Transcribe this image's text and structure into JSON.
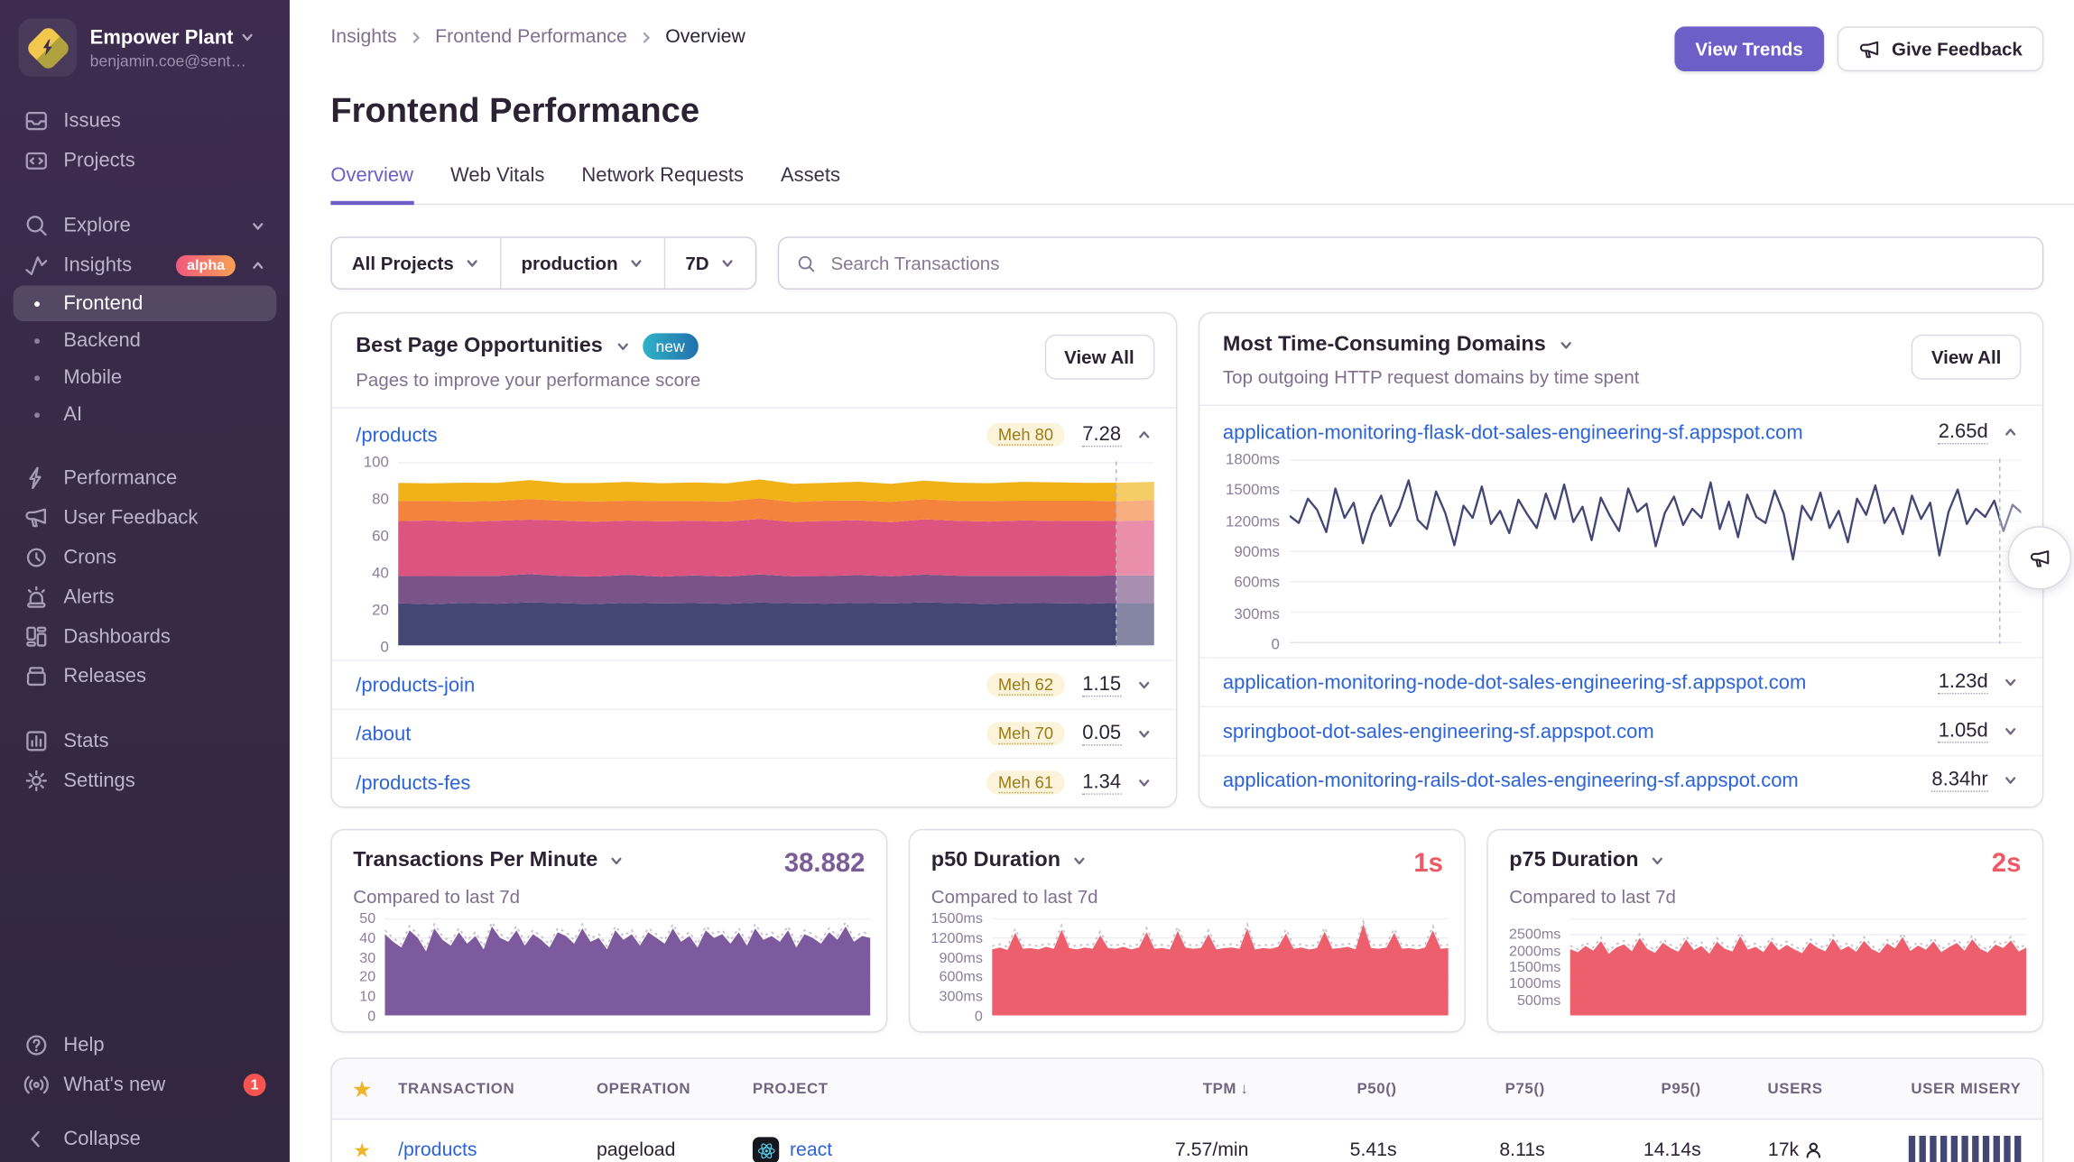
{
  "sidebar": {
    "org": {
      "name": "Empower Plant",
      "email": "benjamin.coe@sent…"
    },
    "items": [
      {
        "label": "Issues"
      },
      {
        "label": "Projects"
      },
      {
        "label": "Explore"
      },
      {
        "label": "Insights",
        "badge": "alpha"
      },
      {
        "label": "Frontend"
      },
      {
        "label": "Backend"
      },
      {
        "label": "Mobile"
      },
      {
        "label": "AI"
      },
      {
        "label": "Performance"
      },
      {
        "label": "User Feedback"
      },
      {
        "label": "Crons"
      },
      {
        "label": "Alerts"
      },
      {
        "label": "Dashboards"
      },
      {
        "label": "Releases"
      },
      {
        "label": "Stats"
      },
      {
        "label": "Settings"
      }
    ],
    "footer": {
      "help": "Help",
      "whats_new": "What's new",
      "whats_new_count": "1",
      "collapse": "Collapse"
    }
  },
  "header": {
    "breadcrumbs": [
      "Insights",
      "Frontend Performance",
      "Overview"
    ],
    "title": "Frontend Performance",
    "view_trends": "View Trends",
    "give_feedback": "Give Feedback"
  },
  "tabs": [
    {
      "label": "Overview"
    },
    {
      "label": "Web Vitals"
    },
    {
      "label": "Network Requests"
    },
    {
      "label": "Assets"
    }
  ],
  "filters": {
    "projects": "All Projects",
    "environment": "production",
    "period": "7D"
  },
  "search": {
    "placeholder": "Search Transactions"
  },
  "cards": {
    "opportunities": {
      "title": "Best Page Opportunities",
      "badge": "new",
      "subtitle": "Pages to improve your performance score",
      "view_all": "View All",
      "rows": [
        {
          "path": "/products",
          "grade": "Meh 80",
          "score": "7.28"
        },
        {
          "path": "/products-join",
          "grade": "Meh 62",
          "score": "1.15"
        },
        {
          "path": "/about",
          "grade": "Meh 70",
          "score": "0.05"
        },
        {
          "path": "/products-fes",
          "grade": "Meh 61",
          "score": "1.34"
        }
      ]
    },
    "domains": {
      "title": "Most Time-Consuming Domains",
      "subtitle": "Top outgoing HTTP request domains by time spent",
      "view_all": "View All",
      "rows": [
        {
          "domain": "application-monitoring-flask-dot-sales-engineering-sf.appspot.com",
          "time": "2.65d"
        },
        {
          "domain": "application-monitoring-node-dot-sales-engineering-sf.appspot.com",
          "time": "1.23d"
        },
        {
          "domain": "springboot-dot-sales-engineering-sf.appspot.com",
          "time": "1.05d"
        },
        {
          "domain": "application-monitoring-rails-dot-sales-engineering-sf.appspot.com",
          "time": "8.34hr"
        }
      ]
    }
  },
  "stats": [
    {
      "title": "Transactions Per Minute",
      "value": "38.882",
      "subtitle": "Compared to last 7d"
    },
    {
      "title": "p50 Duration",
      "value": "1s",
      "subtitle": "Compared to last 7d"
    },
    {
      "title": "p75 Duration",
      "value": "2s",
      "subtitle": "Compared to last 7d"
    }
  ],
  "table": {
    "header": {
      "transaction": "TRANSACTION",
      "operation": "OPERATION",
      "project": "PROJECT",
      "tpm": "TPM",
      "sort_arrow": "↓",
      "p50": "P50()",
      "p75": "P75()",
      "p95": "P95()",
      "users": "USERS",
      "user_misery": "USER MISERY"
    },
    "row": {
      "transaction": "/products",
      "operation": "pageload",
      "project": "react",
      "tpm": "7.57/min",
      "p50": "5.41s",
      "p75": "8.11s",
      "p95": "14.14s",
      "users": "17k",
      "misery_bars": 11
    }
  },
  "colors": {
    "accent": "#6d5fc7",
    "link": "#2b63d9",
    "danger_value": "#ee5966",
    "tpm_value": "#7a5c96",
    "sidebar_bg": "#3a2a4d",
    "meh_badge_bg": "#fbf3da",
    "meh_badge_text": "#9b7a17",
    "new_badge": "#2fb3c7",
    "alpha_badge": "#f2577f",
    "misery_bar": "#444674"
  },
  "chart_data": [
    {
      "id": "page-score-breakdown",
      "type": "area",
      "stacked": true,
      "title": "/products performance score breakdown over 7D",
      "ylim": [
        0,
        100
      ],
      "forecast_at": 0.95,
      "yticks": [
        {
          "label": "100",
          "value": 100
        },
        {
          "label": "80",
          "value": 80
        },
        {
          "label": "60",
          "value": 60
        },
        {
          "label": "40",
          "value": 40
        },
        {
          "label": "20",
          "value": 20
        },
        {
          "label": "0",
          "value": 0
        }
      ],
      "series": [
        {
          "name": "band-1",
          "color": "#444674",
          "values": [
            23,
            22.5,
            23.2,
            22.8,
            23.5,
            23,
            22.6,
            23.3,
            22.9,
            23.1,
            22.7,
            23.4,
            23,
            22.8,
            23.2,
            22.9,
            23.5,
            23.1,
            22.6,
            23.2,
            23,
            22.8,
            23.3,
            23
          ]
        },
        {
          "name": "band-2",
          "color": "#7a5389",
          "values": [
            15,
            15.4,
            14.8,
            15.2,
            15.5,
            14.9,
            15.1,
            15.3,
            14.7,
            15.2,
            15,
            15.4,
            14.8,
            15.1,
            15.3,
            14.9,
            15.2,
            15,
            15.4,
            14.8,
            15.1,
            15.2,
            15,
            15.3
          ]
        },
        {
          "name": "band-3",
          "color": "#dd5480",
          "values": [
            30,
            30.5,
            29.6,
            30.2,
            29.8,
            30.4,
            30,
            29.7,
            30.3,
            29.9,
            30.1,
            30.4,
            29.8,
            30.2,
            30,
            29.6,
            30.3,
            30.1,
            29.8,
            30.4,
            30,
            30.2,
            29.7,
            30.1
          ]
        },
        {
          "name": "band-4",
          "color": "#f4833d",
          "values": [
            11,
            10.7,
            11.2,
            10.9,
            11.3,
            10.8,
            11.1,
            10.9,
            11.2,
            10.8,
            11,
            11.3,
            10.9,
            11.1,
            10.8,
            11.2,
            11,
            10.9,
            11.3,
            10.8,
            11.1,
            11,
            10.9,
            11.2
          ]
        },
        {
          "name": "band-5",
          "color": "#f0b216",
          "values": [
            10,
            9.6,
            10.3,
            9.9,
            10.4,
            9.8,
            10.1,
            10.3,
            9.7,
            10.2,
            9.9,
            10.4,
            10,
            9.8,
            10.3,
            9.9,
            10.2,
            10,
            9.7,
            10.3,
            10.1,
            9.8,
            10.2,
            10
          ]
        }
      ]
    },
    {
      "id": "flask-domain-duration",
      "type": "line",
      "color": "#444674",
      "title": "application-monitoring-flask avg duration over 7D",
      "ylim": [
        0,
        1800
      ],
      "forecast_at": 0.97,
      "yticks": [
        {
          "label": "1800ms",
          "value": 1800
        },
        {
          "label": "1500ms",
          "value": 1500
        },
        {
          "label": "1200ms",
          "value": 1200
        },
        {
          "label": "900ms",
          "value": 900
        },
        {
          "label": "600ms",
          "value": 600
        },
        {
          "label": "300ms",
          "value": 300
        },
        {
          "label": "0",
          "value": 0
        }
      ],
      "values": [
        1250,
        1180,
        1420,
        1310,
        1090,
        1520,
        1230,
        1380,
        980,
        1270,
        1450,
        1150,
        1330,
        1600,
        1210,
        1120,
        1490,
        1280,
        960,
        1350,
        1230,
        1540,
        1170,
        1300,
        1080,
        1410,
        1260,
        1130,
        1470,
        1220,
        1560,
        1190,
        1340,
        1010,
        1430,
        1250,
        1100,
        1520,
        1290,
        1370,
        950,
        1280,
        1440,
        1160,
        1320,
        1230,
        1580,
        1120,
        1390,
        1040,
        1460,
        1240,
        1180,
        1500,
        1270,
        820,
        1350,
        1210,
        1480,
        1130,
        1300,
        990,
        1420,
        1260,
        1550,
        1180,
        1330,
        1070,
        1450,
        1220,
        1380,
        860,
        1290,
        1510,
        1170,
        1320,
        1240,
        1400,
        1100,
        1360,
        1280
      ]
    },
    {
      "id": "tpm",
      "type": "area",
      "color": "#7d5a9d",
      "compare": true,
      "title": "Transactions Per Minute over 7D",
      "ylim": [
        0,
        50
      ],
      "yticks": [
        {
          "label": "50",
          "value": 50
        },
        {
          "label": "40",
          "value": 40
        },
        {
          "label": "30",
          "value": 30
        },
        {
          "label": "20",
          "value": 20
        },
        {
          "label": "10",
          "value": 10
        },
        {
          "label": "0",
          "value": 0
        }
      ],
      "values": [
        42,
        38,
        35,
        44,
        40,
        33,
        45,
        39,
        36,
        43,
        37,
        41,
        34,
        46,
        40,
        38,
        44,
        36,
        42,
        39,
        35,
        43,
        41,
        37,
        45,
        38,
        40,
        34,
        44,
        39,
        42,
        36,
        43,
        40,
        37,
        45,
        38,
        41,
        35,
        44,
        40,
        42,
        37,
        43,
        36,
        45,
        39,
        41,
        38,
        44,
        35,
        42,
        40,
        37,
        43,
        39,
        46,
        38,
        41,
        40
      ]
    },
    {
      "id": "p50",
      "type": "area",
      "color": "#ed5f6d",
      "compare": true,
      "title": "p50 Duration over 7D",
      "ylim": [
        0,
        1500
      ],
      "yticks": [
        {
          "label": "1500ms",
          "value": 1500
        },
        {
          "label": "1200ms",
          "value": 1200
        },
        {
          "label": "900ms",
          "value": 900
        },
        {
          "label": "600ms",
          "value": 600
        },
        {
          "label": "300ms",
          "value": 300
        },
        {
          "label": "0",
          "value": 0
        }
      ],
      "values": [
        1020,
        1050,
        1010,
        1280,
        1030,
        1040,
        1020,
        1060,
        1030,
        1330,
        1040,
        1020,
        1050,
        1030,
        1240,
        1040,
        1030,
        1060,
        1020,
        1050,
        1290,
        1030,
        1040,
        1020,
        1310,
        1050,
        1030,
        1040,
        1260,
        1020,
        1040,
        1050,
        1030,
        1350,
        1020,
        1040,
        1030,
        1060,
        1270,
        1030,
        1050,
        1020,
        1040,
        1300,
        1030,
        1040,
        1060,
        1020,
        1420,
        1040,
        1030,
        1050,
        1280,
        1030,
        1040,
        1020,
        1050,
        1320,
        1030,
        1040
      ]
    },
    {
      "id": "p75",
      "type": "area",
      "color": "#ed5f6d",
      "compare": true,
      "title": "p75 Duration over 7D",
      "ylim": [
        0,
        3000
      ],
      "yticks": [
        {
          "label": "2500ms",
          "value": 2500
        },
        {
          "label": "2000ms",
          "value": 2000
        },
        {
          "label": "1500ms",
          "value": 1500
        },
        {
          "label": "1000ms",
          "value": 1000
        },
        {
          "label": "500ms",
          "value": 500
        }
      ],
      "values": [
        2050,
        1950,
        2150,
        2000,
        2300,
        1900,
        2100,
        2200,
        1980,
        2400,
        2050,
        1930,
        2250,
        2080,
        1960,
        2350,
        2020,
        2150,
        1900,
        2280,
        2060,
        1970,
        2450,
        2030,
        2120,
        1950,
        2300,
        2010,
        2180,
        2040,
        1920,
        2260,
        2090,
        1980,
        2380,
        2020,
        2140,
        1960,
        2310,
        2050,
        1930,
        2230,
        2070,
        2430,
        1990,
        2160,
        2030,
        2290,
        1950,
        2110,
        2240,
        2000,
        2360,
        2060,
        1940,
        2190,
        2080,
        2320,
        1970,
        2100
      ]
    }
  ]
}
